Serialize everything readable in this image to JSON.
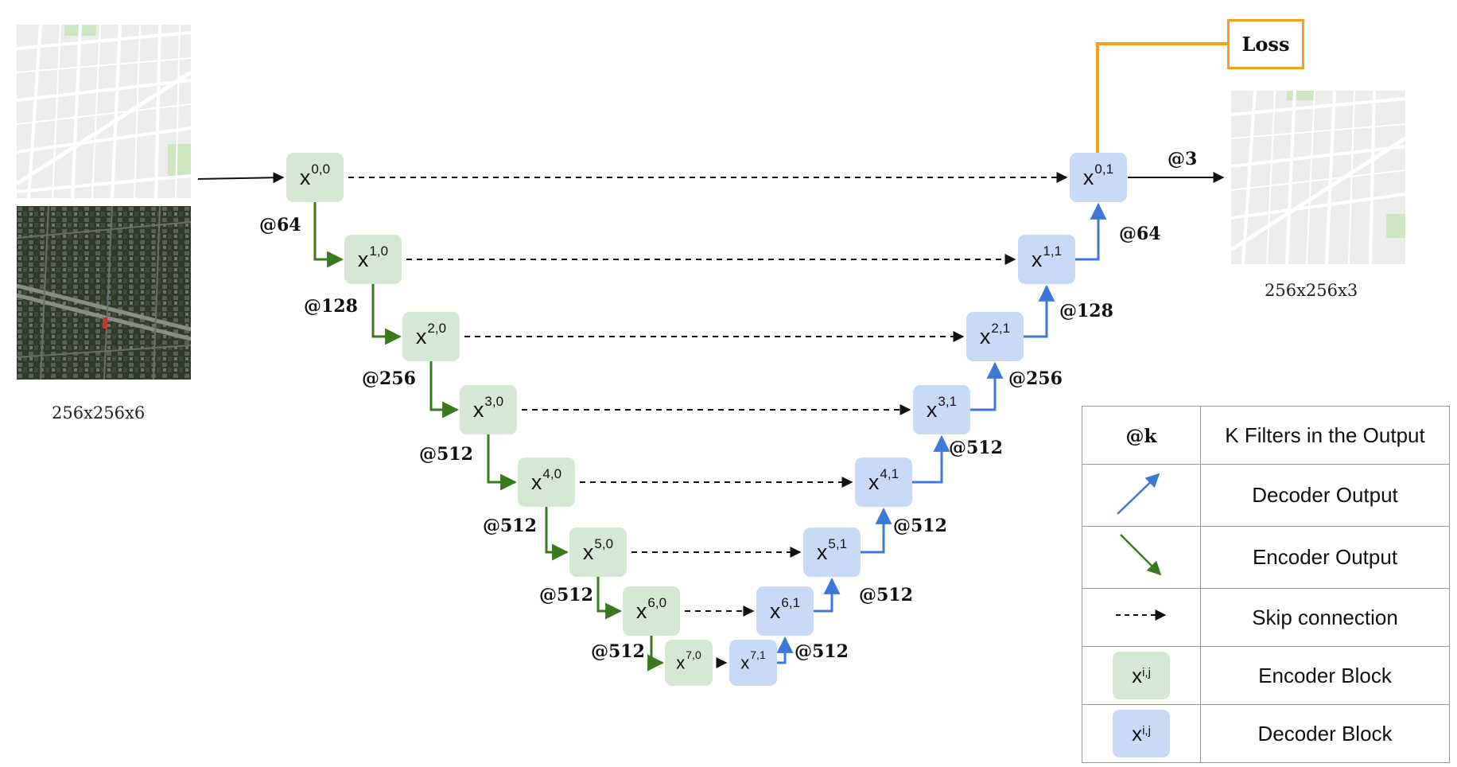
{
  "diagram": {
    "input_caption": "256x256x6",
    "output_caption": "256x256x3",
    "loss_label": "Loss",
    "output_filters_label": "@3",
    "encoder_blocks": [
      {
        "sup": "0,0",
        "filters": "@64"
      },
      {
        "sup": "1,0",
        "filters": "@128"
      },
      {
        "sup": "2,0",
        "filters": "@256"
      },
      {
        "sup": "3,0",
        "filters": "@512"
      },
      {
        "sup": "4,0",
        "filters": "@512"
      },
      {
        "sup": "5,0",
        "filters": "@512"
      },
      {
        "sup": "6,0",
        "filters": "@512"
      },
      {
        "sup": "7,0",
        "filters": ""
      }
    ],
    "decoder_blocks": [
      {
        "sup": "0,1",
        "filters": ""
      },
      {
        "sup": "1,1",
        "filters": "@64"
      },
      {
        "sup": "2,1",
        "filters": "@128"
      },
      {
        "sup": "3,1",
        "filters": "@256"
      },
      {
        "sup": "4,1",
        "filters": "@512"
      },
      {
        "sup": "5,1",
        "filters": "@512"
      },
      {
        "sup": "6,1",
        "filters": "@512"
      },
      {
        "sup": "7,1",
        "filters": "@512"
      }
    ],
    "block_base": "x",
    "colors": {
      "encoder_fill": "#d5e8d4",
      "decoder_fill": "#c9daf8",
      "encoder_arrow": "#3a7a1e",
      "decoder_arrow": "#3d78d8",
      "loss_line": "#f6a01a"
    }
  },
  "legend": {
    "rows": [
      {
        "symbol": "@k",
        "text": "K Filters in the Output"
      },
      {
        "symbol": "decoder-arrow",
        "text": "Decoder Output"
      },
      {
        "symbol": "encoder-arrow",
        "text": "Encoder Output"
      },
      {
        "symbol": "skip-arrow",
        "text": "Skip connection"
      },
      {
        "symbol": "encoder-block",
        "text": "Encoder Block",
        "sup": "i,j"
      },
      {
        "symbol": "decoder-block",
        "text": "Decoder Block",
        "sup": "i,j"
      }
    ]
  }
}
